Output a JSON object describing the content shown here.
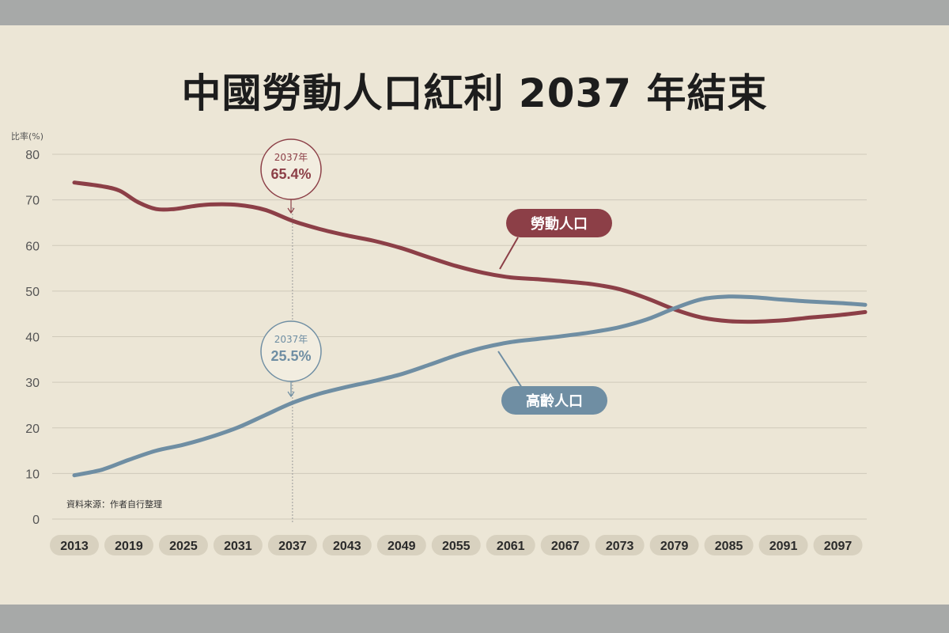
{
  "chart_data": {
    "type": "line",
    "title": "中國勞動人口紅利 2037 年結束",
    "ylabel": "比率(%)",
    "ylim": [
      0,
      80
    ],
    "yticks": [
      0,
      10,
      20,
      30,
      40,
      50,
      60,
      70,
      80
    ],
    "x_ticks": [
      "2013",
      "2019",
      "2025",
      "2031",
      "2037",
      "2043",
      "2049",
      "2055",
      "2061",
      "2067",
      "2073",
      "2079",
      "2085",
      "2091",
      "2097"
    ],
    "xlim": [
      2013,
      2100
    ],
    "grid": true,
    "source": "資料來源：作者自行整理",
    "series": [
      {
        "name": "勞動人口",
        "color": "#8c3f47",
        "points": [
          [
            2013,
            73.8
          ],
          [
            2016,
            73.0
          ],
          [
            2018,
            72.0
          ],
          [
            2020,
            69.5
          ],
          [
            2022,
            68.0
          ],
          [
            2024,
            68.0
          ],
          [
            2026,
            68.6
          ],
          [
            2028,
            69.0
          ],
          [
            2031,
            68.9
          ],
          [
            2034,
            67.8
          ],
          [
            2037,
            65.4
          ],
          [
            2040,
            63.6
          ],
          [
            2043,
            62.2
          ],
          [
            2046,
            61.0
          ],
          [
            2049,
            59.4
          ],
          [
            2052,
            57.4
          ],
          [
            2055,
            55.5
          ],
          [
            2058,
            54.0
          ],
          [
            2061,
            53.0
          ],
          [
            2064,
            52.6
          ],
          [
            2067,
            52.1
          ],
          [
            2070,
            51.5
          ],
          [
            2073,
            50.4
          ],
          [
            2076,
            48.4
          ],
          [
            2079,
            46.0
          ],
          [
            2082,
            44.2
          ],
          [
            2085,
            43.4
          ],
          [
            2088,
            43.3
          ],
          [
            2091,
            43.6
          ],
          [
            2094,
            44.2
          ],
          [
            2097,
            44.7
          ],
          [
            2100,
            45.4
          ]
        ]
      },
      {
        "name": "高齡人口",
        "color": "#6f8ea3",
        "points": [
          [
            2013,
            9.6
          ],
          [
            2016,
            10.8
          ],
          [
            2019,
            13.0
          ],
          [
            2022,
            15.0
          ],
          [
            2025,
            16.3
          ],
          [
            2028,
            18.0
          ],
          [
            2031,
            20.1
          ],
          [
            2034,
            22.8
          ],
          [
            2037,
            25.5
          ],
          [
            2040,
            27.5
          ],
          [
            2043,
            29.0
          ],
          [
            2046,
            30.3
          ],
          [
            2049,
            31.8
          ],
          [
            2052,
            33.8
          ],
          [
            2055,
            35.9
          ],
          [
            2058,
            37.6
          ],
          [
            2061,
            38.8
          ],
          [
            2064,
            39.5
          ],
          [
            2067,
            40.2
          ],
          [
            2070,
            41.0
          ],
          [
            2073,
            42.1
          ],
          [
            2076,
            43.8
          ],
          [
            2079,
            46.2
          ],
          [
            2082,
            48.2
          ],
          [
            2085,
            48.8
          ],
          [
            2088,
            48.6
          ],
          [
            2091,
            48.1
          ],
          [
            2094,
            47.7
          ],
          [
            2097,
            47.4
          ],
          [
            2100,
            47.0
          ]
        ]
      }
    ],
    "annotations": [
      {
        "year": "2037年",
        "value": "65.4%",
        "series": "勞動人口"
      },
      {
        "year": "2037年",
        "value": "25.5%",
        "series": "高齡人口"
      }
    ]
  }
}
